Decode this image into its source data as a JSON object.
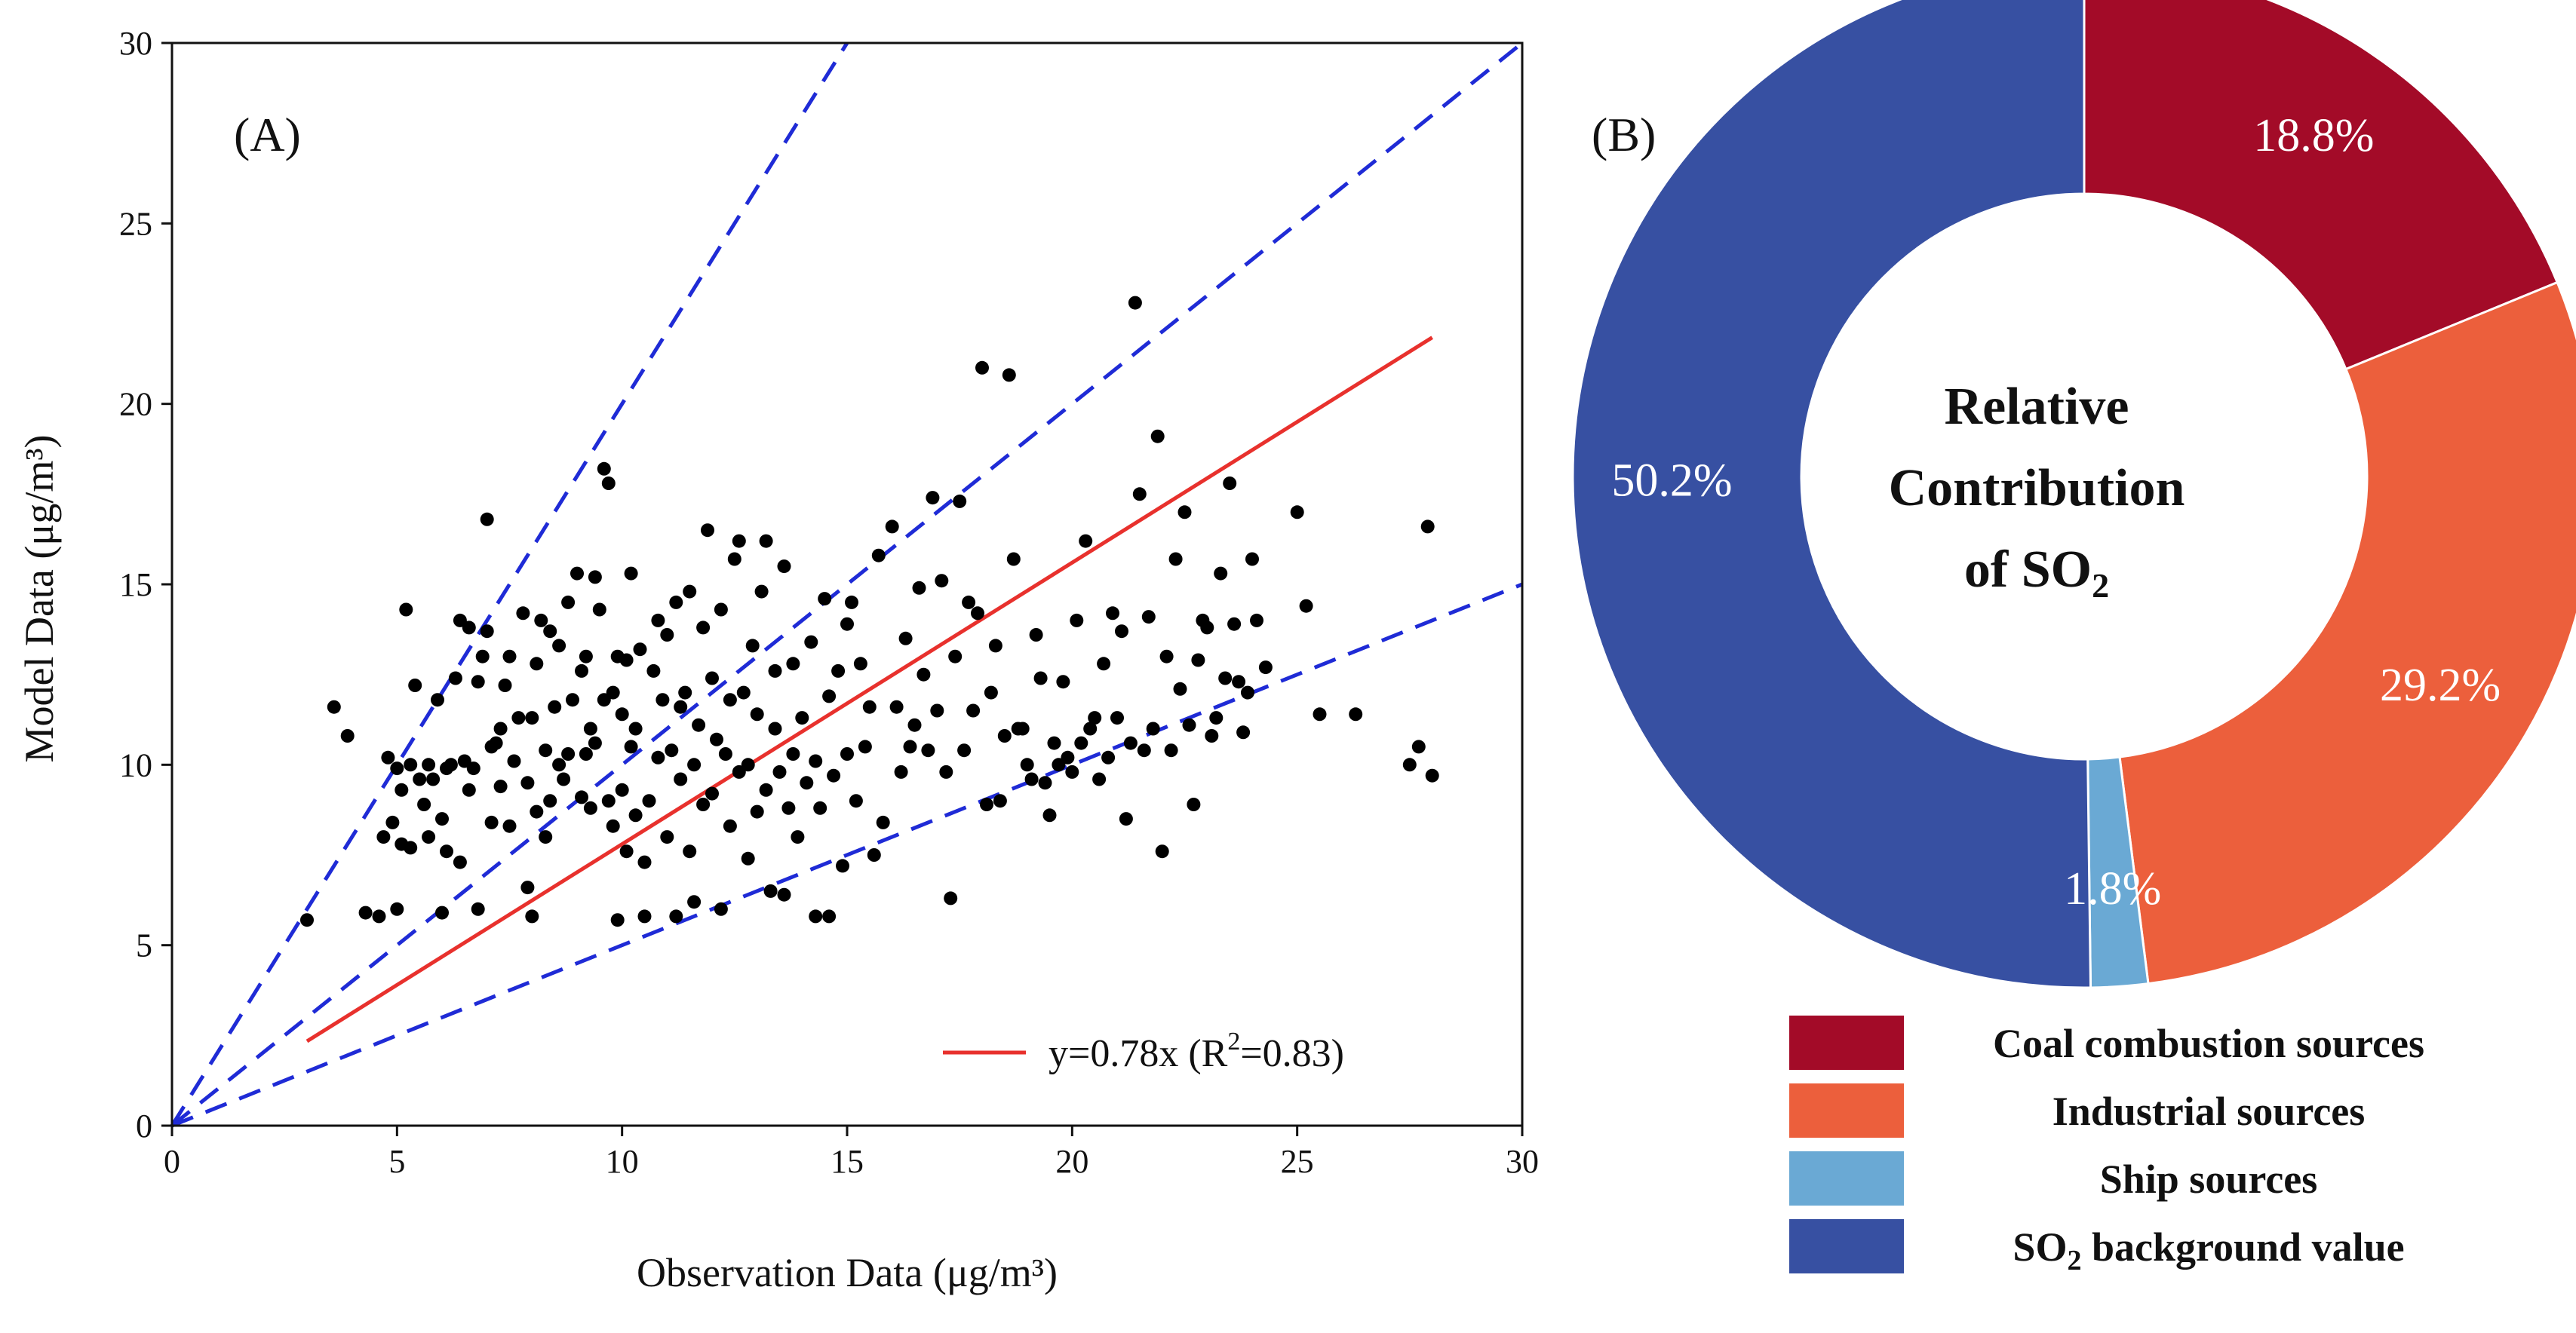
{
  "chart_data": [
    {
      "type": "scatter",
      "panel_label": "(A)",
      "xlabel": "Observation Data (μg/m³)",
      "ylabel": "Model Data (μg/m³)",
      "xlim": [
        0,
        30
      ],
      "ylim": [
        0,
        30
      ],
      "xticks": [
        "0",
        "5",
        "10",
        "15",
        "20",
        "25",
        "30"
      ],
      "yticks": [
        "0",
        "5",
        "10",
        "15",
        "20",
        "25",
        "30"
      ],
      "grid": false,
      "legend_position": "bottom-right",
      "fit_line": {
        "label_prefix": "y=0.78x (R",
        "label_sup": "2",
        "label_suffix": "=0.83)",
        "slope": 0.78,
        "x_range": [
          3,
          28
        ],
        "color": "#e8312d"
      },
      "reference_lines": {
        "slopes": [
          2,
          1,
          0.5
        ],
        "color": "#1f2bd6"
      },
      "points": [
        [
          3,
          5.7
        ],
        [
          3.6,
          11.6
        ],
        [
          3.9,
          10.8
        ],
        [
          4.3,
          5.9
        ],
        [
          4.6,
          5.8
        ],
        [
          4.7,
          8.0
        ],
        [
          4.8,
          10.2
        ],
        [
          4.9,
          8.4
        ],
        [
          5.0,
          6.0
        ],
        [
          5.0,
          9.9
        ],
        [
          5.1,
          9.3
        ],
        [
          5.1,
          7.8
        ],
        [
          5.2,
          14.3
        ],
        [
          5.3,
          7.7
        ],
        [
          5.3,
          10.0
        ],
        [
          5.4,
          12.2
        ],
        [
          5.5,
          9.6
        ],
        [
          5.6,
          8.9
        ],
        [
          5.7,
          8.0
        ],
        [
          5.7,
          10.0
        ],
        [
          5.8,
          9.6
        ],
        [
          5.9,
          11.8
        ],
        [
          6.0,
          8.5
        ],
        [
          6.0,
          5.9
        ],
        [
          6.1,
          7.6
        ],
        [
          6.1,
          9.9
        ],
        [
          6.2,
          10.0
        ],
        [
          6.3,
          12.4
        ],
        [
          6.4,
          7.3
        ],
        [
          6.4,
          14.0
        ],
        [
          6.5,
          10.1
        ],
        [
          6.6,
          9.3
        ],
        [
          6.6,
          13.8
        ],
        [
          6.7,
          9.9
        ],
        [
          6.8,
          12.3
        ],
        [
          6.8,
          6.0
        ],
        [
          6.9,
          13.0
        ],
        [
          7.0,
          16.8
        ],
        [
          7.0,
          13.7
        ],
        [
          7.1,
          10.5
        ],
        [
          7.1,
          8.4
        ],
        [
          7.2,
          10.6
        ],
        [
          7.3,
          9.4
        ],
        [
          7.3,
          11.0
        ],
        [
          7.4,
          12.2
        ],
        [
          7.5,
          8.3
        ],
        [
          7.5,
          13.0
        ],
        [
          7.6,
          10.1
        ],
        [
          7.7,
          11.3
        ],
        [
          7.8,
          14.2
        ],
        [
          7.9,
          6.6
        ],
        [
          7.9,
          9.5
        ],
        [
          8.0,
          5.8
        ],
        [
          8.0,
          11.3
        ],
        [
          8.1,
          8.7
        ],
        [
          8.1,
          12.8
        ],
        [
          8.2,
          14.0
        ],
        [
          8.3,
          10.4
        ],
        [
          8.3,
          8.0
        ],
        [
          8.4,
          9.0
        ],
        [
          8.4,
          13.7
        ],
        [
          8.5,
          11.6
        ],
        [
          8.6,
          10.0
        ],
        [
          8.6,
          13.3
        ],
        [
          8.7,
          9.6
        ],
        [
          8.8,
          14.5
        ],
        [
          8.8,
          10.3
        ],
        [
          8.9,
          11.8
        ],
        [
          9.0,
          15.3
        ],
        [
          9.1,
          9.1
        ],
        [
          9.1,
          12.6
        ],
        [
          9.2,
          10.3
        ],
        [
          9.2,
          13.0
        ],
        [
          9.3,
          11.0
        ],
        [
          9.3,
          8.8
        ],
        [
          9.4,
          15.2
        ],
        [
          9.4,
          10.6
        ],
        [
          9.5,
          14.3
        ],
        [
          9.6,
          18.2
        ],
        [
          9.6,
          11.8
        ],
        [
          9.7,
          17.8
        ],
        [
          9.7,
          9.0
        ],
        [
          9.8,
          12.0
        ],
        [
          9.8,
          8.3
        ],
        [
          9.9,
          13.0
        ],
        [
          9.9,
          5.7
        ],
        [
          10.0,
          11.4
        ],
        [
          10.0,
          9.3
        ],
        [
          10.1,
          12.9
        ],
        [
          10.1,
          7.6
        ],
        [
          10.2,
          10.5
        ],
        [
          10.2,
          15.3
        ],
        [
          10.3,
          11.0
        ],
        [
          10.3,
          8.6
        ],
        [
          10.4,
          13.2
        ],
        [
          10.5,
          7.3
        ],
        [
          10.5,
          5.8
        ],
        [
          10.6,
          9.0
        ],
        [
          10.7,
          12.6
        ],
        [
          10.8,
          14.0
        ],
        [
          10.8,
          10.2
        ],
        [
          10.9,
          11.8
        ],
        [
          11.0,
          8.0
        ],
        [
          11.0,
          13.6
        ],
        [
          11.1,
          10.4
        ],
        [
          11.2,
          14.5
        ],
        [
          11.2,
          5.8
        ],
        [
          11.3,
          11.6
        ],
        [
          11.3,
          9.6
        ],
        [
          11.4,
          12.0
        ],
        [
          11.5,
          7.6
        ],
        [
          11.5,
          14.8
        ],
        [
          11.6,
          10.0
        ],
        [
          11.6,
          6.2
        ],
        [
          11.7,
          11.1
        ],
        [
          11.8,
          13.8
        ],
        [
          11.8,
          8.9
        ],
        [
          11.9,
          16.5
        ],
        [
          12.0,
          9.2
        ],
        [
          12.0,
          12.4
        ],
        [
          12.1,
          10.7
        ],
        [
          12.2,
          6.0
        ],
        [
          12.2,
          14.3
        ],
        [
          12.3,
          10.3
        ],
        [
          12.4,
          11.8
        ],
        [
          12.4,
          8.3
        ],
        [
          12.5,
          15.7
        ],
        [
          12.6,
          9.8
        ],
        [
          12.6,
          16.2
        ],
        [
          12.7,
          12.0
        ],
        [
          12.8,
          7.4
        ],
        [
          12.8,
          10.0
        ],
        [
          12.9,
          13.3
        ],
        [
          13.0,
          11.4
        ],
        [
          13.0,
          8.7
        ],
        [
          13.1,
          14.8
        ],
        [
          13.2,
          9.3
        ],
        [
          13.2,
          16.2
        ],
        [
          13.3,
          6.5
        ],
        [
          13.4,
          11.0
        ],
        [
          13.4,
          12.6
        ],
        [
          13.5,
          9.8
        ],
        [
          13.6,
          6.4
        ],
        [
          13.6,
          15.5
        ],
        [
          13.7,
          8.8
        ],
        [
          13.8,
          12.8
        ],
        [
          13.8,
          10.3
        ],
        [
          13.9,
          8.0
        ],
        [
          14.0,
          11.3
        ],
        [
          14.1,
          9.5
        ],
        [
          14.2,
          13.4
        ],
        [
          14.3,
          10.1
        ],
        [
          14.3,
          5.8
        ],
        [
          14.4,
          8.8
        ],
        [
          14.5,
          14.6
        ],
        [
          14.6,
          11.9
        ],
        [
          14.6,
          5.8
        ],
        [
          14.7,
          9.7
        ],
        [
          14.8,
          12.6
        ],
        [
          14.9,
          7.2
        ],
        [
          15.0,
          10.3
        ],
        [
          15.0,
          13.9
        ],
        [
          15.1,
          14.5
        ],
        [
          15.2,
          9.0
        ],
        [
          15.3,
          12.8
        ],
        [
          15.4,
          10.5
        ],
        [
          15.5,
          11.6
        ],
        [
          15.6,
          7.5
        ],
        [
          15.7,
          15.8
        ],
        [
          15.8,
          8.4
        ],
        [
          16.0,
          16.6
        ],
        [
          16.1,
          11.6
        ],
        [
          16.2,
          9.8
        ],
        [
          16.3,
          13.5
        ],
        [
          16.4,
          10.5
        ],
        [
          16.5,
          11.1
        ],
        [
          16.6,
          14.9
        ],
        [
          16.7,
          12.5
        ],
        [
          16.8,
          10.4
        ],
        [
          16.9,
          17.4
        ],
        [
          17.0,
          11.5
        ],
        [
          17.1,
          15.1
        ],
        [
          17.2,
          9.8
        ],
        [
          17.3,
          6.3
        ],
        [
          17.4,
          13.0
        ],
        [
          17.5,
          17.3
        ],
        [
          17.6,
          10.4
        ],
        [
          17.7,
          14.5
        ],
        [
          17.8,
          11.5
        ],
        [
          17.9,
          14.2
        ],
        [
          18.0,
          21.0
        ],
        [
          18.1,
          8.9
        ],
        [
          18.2,
          12.0
        ],
        [
          18.3,
          13.3
        ],
        [
          18.4,
          9.0
        ],
        [
          18.5,
          10.8
        ],
        [
          18.6,
          20.8
        ],
        [
          18.7,
          15.7
        ],
        [
          18.8,
          11.0
        ],
        [
          18.9,
          11.0
        ],
        [
          19.0,
          10.0
        ],
        [
          19.1,
          9.6
        ],
        [
          19.2,
          13.6
        ],
        [
          19.3,
          12.4
        ],
        [
          19.4,
          9.5
        ],
        [
          19.5,
          8.6
        ],
        [
          19.6,
          10.6
        ],
        [
          19.7,
          10.0
        ],
        [
          19.8,
          12.3
        ],
        [
          19.9,
          10.2
        ],
        [
          20.0,
          9.8
        ],
        [
          20.1,
          14.0
        ],
        [
          20.2,
          10.6
        ],
        [
          20.3,
          16.2
        ],
        [
          20.4,
          11.0
        ],
        [
          20.5,
          11.3
        ],
        [
          20.6,
          9.6
        ],
        [
          20.7,
          12.8
        ],
        [
          20.8,
          10.2
        ],
        [
          20.9,
          14.2
        ],
        [
          21.0,
          11.3
        ],
        [
          21.1,
          13.7
        ],
        [
          21.2,
          8.5
        ],
        [
          21.3,
          10.6
        ],
        [
          21.4,
          22.8
        ],
        [
          21.5,
          17.5
        ],
        [
          21.6,
          10.4
        ],
        [
          21.7,
          14.1
        ],
        [
          21.8,
          11.0
        ],
        [
          21.9,
          19.1
        ],
        [
          22.0,
          7.6
        ],
        [
          22.1,
          13.0
        ],
        [
          22.2,
          10.4
        ],
        [
          22.3,
          15.7
        ],
        [
          22.4,
          12.1
        ],
        [
          22.5,
          17.0
        ],
        [
          22.6,
          11.1
        ],
        [
          22.7,
          8.9
        ],
        [
          22.8,
          12.9
        ],
        [
          22.9,
          14.0
        ],
        [
          23.0,
          13.8
        ],
        [
          23.1,
          10.8
        ],
        [
          23.2,
          11.3
        ],
        [
          23.3,
          15.3
        ],
        [
          23.4,
          12.4
        ],
        [
          23.5,
          17.8
        ],
        [
          23.6,
          13.9
        ],
        [
          23.7,
          12.3
        ],
        [
          23.8,
          10.9
        ],
        [
          23.9,
          12.0
        ],
        [
          24.0,
          15.7
        ],
        [
          24.1,
          14.0
        ],
        [
          24.3,
          12.7
        ],
        [
          25.0,
          17.0
        ],
        [
          25.2,
          14.4
        ],
        [
          25.5,
          11.4
        ],
        [
          26.3,
          11.4
        ],
        [
          27.5,
          10.0
        ],
        [
          27.7,
          10.5
        ],
        [
          27.9,
          16.6
        ],
        [
          28.0,
          9.7
        ]
      ]
    },
    {
      "type": "pie",
      "panel_label": "(B)",
      "donut": true,
      "center_text_lines": [
        "Relative",
        "Contribution"
      ],
      "center_text_so2": {
        "prefix": "of SO",
        "sub": "2"
      },
      "legend_position": "bottom",
      "slices": [
        {
          "name": "Coal combustion sources",
          "value": 18.8,
          "label": "18.8%",
          "color": "#a30b28"
        },
        {
          "name": "Industrial sources",
          "value": 29.2,
          "label": "29.2%",
          "color": "#ec5f3c"
        },
        {
          "name": "Ship sources",
          "value": 1.8,
          "label": "1.8%",
          "color": "#6aa9d4"
        },
        {
          "name": "SO2 background value",
          "value": 50.2,
          "label": "50.2%",
          "color": "#3750a2"
        }
      ],
      "legend": [
        {
          "text": "Coal combustion sources"
        },
        {
          "text": "Industrial sources"
        },
        {
          "text": "Ship sources"
        },
        {
          "prefix": "SO",
          "sub": "2",
          "suffix": " background value"
        }
      ]
    }
  ]
}
